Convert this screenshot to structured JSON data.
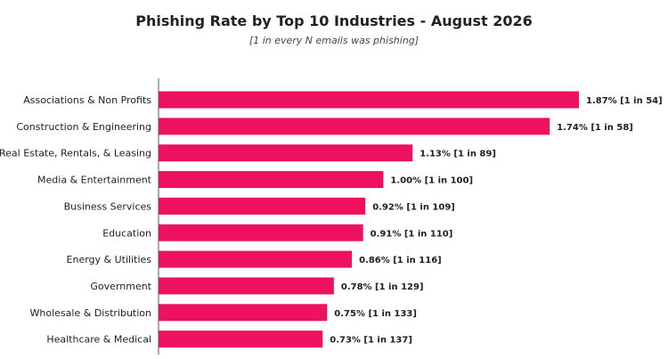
{
  "chart_data": {
    "type": "bar",
    "orientation": "horizontal",
    "title": "Phishing Rate by Top 10 Industries - August 2026",
    "subtitle": "[1 in every N emails was phishing]",
    "xlabel": "",
    "ylabel": "",
    "unit": "%",
    "xlim": [
      0,
      2.0
    ],
    "grid": false,
    "bar_color": "#EE1160",
    "categories": [
      "Associations & Non Profits",
      "Construction & Engineering",
      "Real Estate, Rentals, & Leasing",
      "Media & Entertainment",
      "Business Services",
      "Education",
      "Energy & Utilities",
      "Government",
      "Wholesale & Distribution",
      "Healthcare & Medical"
    ],
    "values": [
      1.87,
      1.74,
      1.13,
      1.0,
      0.92,
      0.91,
      0.86,
      0.78,
      0.75,
      0.73
    ],
    "one_in_n": [
      54,
      58,
      89,
      100,
      109,
      110,
      116,
      129,
      133,
      137
    ],
    "data_labels": [
      "1.87% [1 in 54]",
      "1.74% [1 in 58]",
      "1.13% [1 in 89]",
      "1.00% [1 in 100]",
      "0.92% [1 in 109]",
      "0.91% [1 in 110]",
      "0.86% [1 in 116]",
      "0.78% [1 in 129]",
      "0.75% [1 in 133]",
      "0.73% [1 in 137]"
    ]
  }
}
